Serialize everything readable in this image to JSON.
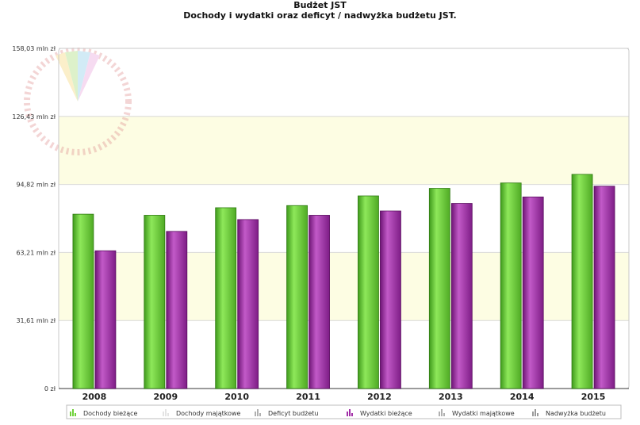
{
  "chart_data": {
    "type": "bar",
    "title": "Budżet JST",
    "subtitle": "Dochody i wydatki oraz deficyt / nadwyżka budżetu JST.",
    "categories": [
      "2008",
      "2009",
      "2010",
      "2011",
      "2012",
      "2013",
      "2014",
      "2015"
    ],
    "y_ticks": [
      "0 zł",
      "31,61 mln zł",
      "63,21 mln zł",
      "94,82 mln zł",
      "126,43 mln zł",
      "158,03 mln zł"
    ],
    "ylim": [
      0,
      158.03
    ],
    "grid": true,
    "legend_position": "bottom",
    "series": [
      {
        "name": "Dochody bieżące",
        "color": "#6fd13a",
        "values": [
          81.0,
          80.5,
          84.0,
          85.0,
          89.5,
          93.0,
          95.5,
          99.5
        ]
      },
      {
        "name": "Dochody majątkowe",
        "color": "#e4e4e4",
        "values": [
          0,
          0,
          0,
          0,
          0,
          0,
          0,
          0
        ]
      },
      {
        "name": "Deficyt budżetu",
        "color": "#b0b0b0",
        "values": [
          0,
          0,
          0,
          0,
          0,
          0,
          0,
          0
        ]
      },
      {
        "name": "Wydatki bieżące",
        "color": "#a22fa8",
        "values": [
          64.0,
          73.0,
          78.5,
          80.5,
          82.5,
          86.0,
          89.0,
          94.0
        ]
      },
      {
        "name": "Wydatki majątkowe",
        "color": "#b0b0b0",
        "values": [
          0,
          0,
          0,
          0,
          0,
          0,
          0,
          0
        ]
      },
      {
        "name": "Nadwyżka budżetu",
        "color": "#9a9a9a",
        "values": [
          0,
          0,
          0,
          0,
          0,
          0,
          0,
          0
        ]
      }
    ]
  }
}
